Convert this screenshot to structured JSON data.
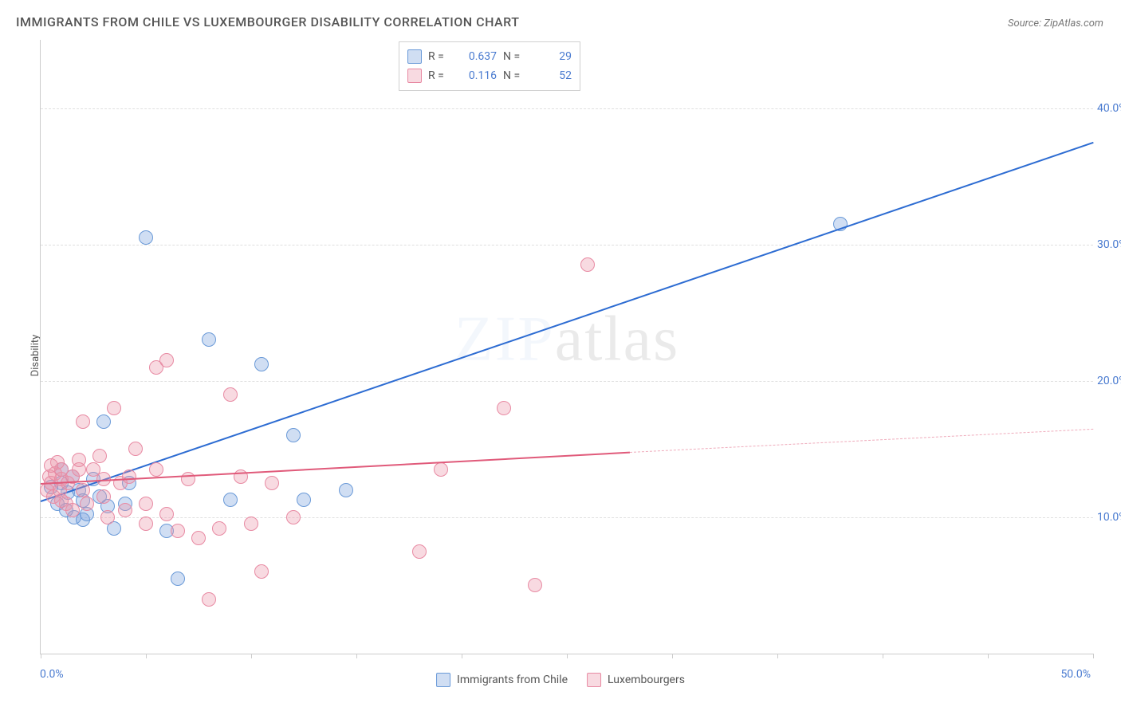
{
  "chart": {
    "type": "scatter",
    "title": "IMMIGRANTS FROM CHILE VS LUXEMBOURGER DISABILITY CORRELATION CHART",
    "source": "Source: ZipAtlas.com",
    "watermark_zip": "ZIP",
    "watermark_atlas": "atlas",
    "ylabel": "Disability",
    "xlim": [
      0,
      50
    ],
    "ylim": [
      0,
      45
    ],
    "yticks": [
      10,
      20,
      30,
      40
    ],
    "ytick_labels": [
      "10.0%",
      "20.0%",
      "30.0%",
      "40.0%"
    ],
    "xtick_min_label": "0.0%",
    "xtick_max_label": "50.0%",
    "background_color": "#ffffff",
    "grid_color": "#e0e0e0",
    "point_radius": 8,
    "series": [
      {
        "name": "Immigrants from Chile",
        "color_fill": "rgba(120,160,220,0.35)",
        "color_stroke": "#6a9ad8",
        "R": "0.637",
        "N": "29",
        "trend": {
          "x0": 0,
          "y0": 11.2,
          "x1": 50,
          "y1": 37.5,
          "color": "#2d6cd2",
          "width": 2,
          "dash": "solid"
        },
        "points": [
          [
            0.5,
            12.2
          ],
          [
            0.8,
            11.0
          ],
          [
            1.0,
            12.5
          ],
          [
            1.2,
            10.5
          ],
          [
            1.3,
            11.8
          ],
          [
            1.5,
            13.0
          ],
          [
            1.6,
            10.0
          ],
          [
            1.8,
            12.0
          ],
          [
            2.0,
            9.8
          ],
          [
            2.0,
            11.2
          ],
          [
            2.2,
            10.2
          ],
          [
            2.5,
            12.8
          ],
          [
            2.8,
            11.5
          ],
          [
            3.0,
            17.0
          ],
          [
            3.2,
            10.8
          ],
          [
            3.5,
            9.2
          ],
          [
            4.0,
            11.0
          ],
          [
            4.2,
            12.5
          ],
          [
            5.0,
            30.5
          ],
          [
            6.0,
            9.0
          ],
          [
            6.5,
            5.5
          ],
          [
            8.0,
            23.0
          ],
          [
            9.0,
            11.3
          ],
          [
            10.5,
            21.2
          ],
          [
            12.0,
            16.0
          ],
          [
            12.5,
            11.3
          ],
          [
            14.5,
            12.0
          ],
          [
            38.0,
            31.5
          ],
          [
            1.0,
            13.5
          ]
        ]
      },
      {
        "name": "Luxembourgers",
        "color_fill": "rgba(235,150,170,0.35)",
        "color_stroke": "#e88aa3",
        "R": "0.116",
        "N": "52",
        "trend": {
          "x0": 0,
          "y0": 12.5,
          "x1": 28,
          "y1": 14.8,
          "color": "#e05a7a",
          "width": 2,
          "dash": "solid",
          "extend_x": 50,
          "extend_y": 16.5
        },
        "points": [
          [
            0.3,
            12.0
          ],
          [
            0.4,
            13.0
          ],
          [
            0.5,
            12.5
          ],
          [
            0.6,
            11.5
          ],
          [
            0.7,
            13.2
          ],
          [
            0.8,
            14.0
          ],
          [
            0.9,
            12.0
          ],
          [
            1.0,
            12.8
          ],
          [
            1.0,
            13.5
          ],
          [
            1.2,
            11.0
          ],
          [
            1.3,
            12.5
          ],
          [
            1.5,
            13.0
          ],
          [
            1.5,
            10.5
          ],
          [
            1.8,
            13.5
          ],
          [
            2.0,
            12.0
          ],
          [
            2.0,
            17.0
          ],
          [
            2.2,
            11.0
          ],
          [
            2.5,
            13.5
          ],
          [
            2.8,
            14.5
          ],
          [
            3.0,
            11.5
          ],
          [
            3.0,
            12.8
          ],
          [
            3.2,
            10.0
          ],
          [
            3.5,
            18.0
          ],
          [
            3.8,
            12.5
          ],
          [
            4.0,
            10.5
          ],
          [
            4.2,
            13.0
          ],
          [
            4.5,
            15.0
          ],
          [
            5.0,
            11.0
          ],
          [
            5.0,
            9.5
          ],
          [
            5.5,
            21.0
          ],
          [
            5.5,
            13.5
          ],
          [
            6.0,
            10.2
          ],
          [
            6.0,
            21.5
          ],
          [
            6.5,
            9.0
          ],
          [
            7.0,
            12.8
          ],
          [
            7.5,
            8.5
          ],
          [
            8.0,
            4.0
          ],
          [
            8.5,
            9.2
          ],
          [
            9.0,
            19.0
          ],
          [
            9.5,
            13.0
          ],
          [
            10.0,
            9.5
          ],
          [
            10.5,
            6.0
          ],
          [
            11.0,
            12.5
          ],
          [
            12.0,
            10.0
          ],
          [
            18.0,
            7.5
          ],
          [
            19.0,
            13.5
          ],
          [
            22.0,
            18.0
          ],
          [
            23.5,
            5.0
          ],
          [
            26.0,
            28.5
          ],
          [
            1.0,
            11.2
          ],
          [
            0.5,
            13.8
          ],
          [
            1.8,
            14.2
          ]
        ]
      }
    ],
    "legend_top": {
      "labels": {
        "R": "R =",
        "N": "N ="
      }
    }
  }
}
